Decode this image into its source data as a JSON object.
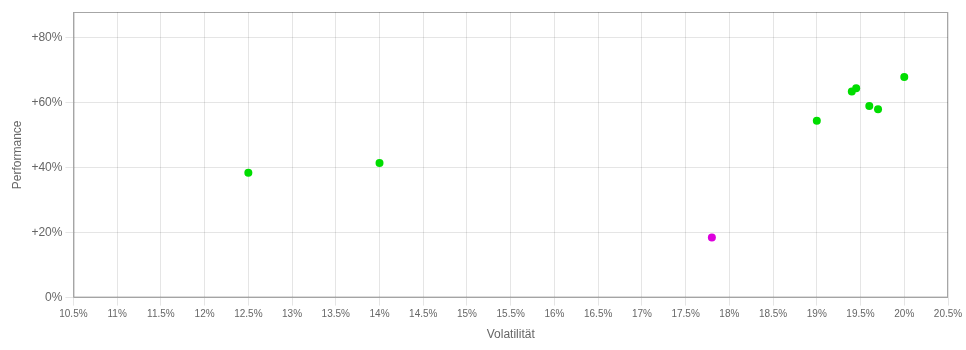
{
  "chart_data": {
    "type": "scatter",
    "xlabel": "Volatilität",
    "ylabel": "Performance",
    "series": [
      {
        "color": "#00dd00",
        "x": [
          0.125,
          0.14,
          0.19,
          0.194,
          0.1945,
          0.196,
          0.197,
          0.2
        ],
        "values": [
          0.385,
          0.415,
          0.545,
          0.635,
          0.645,
          0.59,
          0.58,
          0.68
        ]
      },
      {
        "color": "#dd00dd",
        "x": [
          0.178
        ],
        "values": [
          0.185
        ]
      }
    ],
    "xlim": [
      0.105,
      0.205
    ],
    "ylim": [
      0.0,
      0.88
    ],
    "xticks": [
      {
        "value": 0.105,
        "label": "10.5%"
      },
      {
        "value": 0.11,
        "label": "11%"
      },
      {
        "value": 0.115,
        "label": "11.5%"
      },
      {
        "value": 0.12,
        "label": "12%"
      },
      {
        "value": 0.125,
        "label": "12.5%"
      },
      {
        "value": 0.13,
        "label": "13%"
      },
      {
        "value": 0.135,
        "label": "13.5%"
      },
      {
        "value": 0.14,
        "label": "14%"
      },
      {
        "value": 0.145,
        "label": "14.5%"
      },
      {
        "value": 0.15,
        "label": "15%"
      },
      {
        "value": 0.155,
        "label": "15.5%"
      },
      {
        "value": 0.16,
        "label": "16%"
      },
      {
        "value": 0.165,
        "label": "16.5%"
      },
      {
        "value": 0.17,
        "label": "17%"
      },
      {
        "value": 0.175,
        "label": "17.5%"
      },
      {
        "value": 0.18,
        "label": "18%"
      },
      {
        "value": 0.185,
        "label": "18.5%"
      },
      {
        "value": 0.19,
        "label": "19%"
      },
      {
        "value": 0.195,
        "label": "19.5%"
      },
      {
        "value": 0.2,
        "label": "20%"
      },
      {
        "value": 0.205,
        "label": "20.5%"
      }
    ],
    "yticks": [
      {
        "value": 0.0,
        "label": "0%"
      },
      {
        "value": 0.2,
        "label": "+20%"
      },
      {
        "value": 0.4,
        "label": "+40%"
      },
      {
        "value": 0.6,
        "label": "+60%"
      },
      {
        "value": 0.8,
        "label": "+80%"
      }
    ],
    "grid": true
  }
}
